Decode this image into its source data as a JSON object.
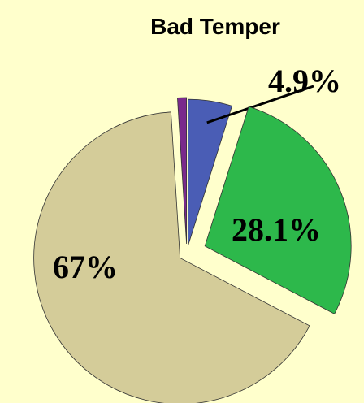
{
  "chart_data": {
    "type": "pie",
    "title": "Bad Temper",
    "values": [
      4.9,
      28.1,
      67,
      1
    ],
    "value_labels": [
      "4.9%",
      "28.1%",
      "67%",
      null
    ],
    "colors": [
      "#4a5db5",
      "#2db84b",
      "#d4cc99",
      "#7a2a8c"
    ],
    "background": "#ffffcc"
  }
}
